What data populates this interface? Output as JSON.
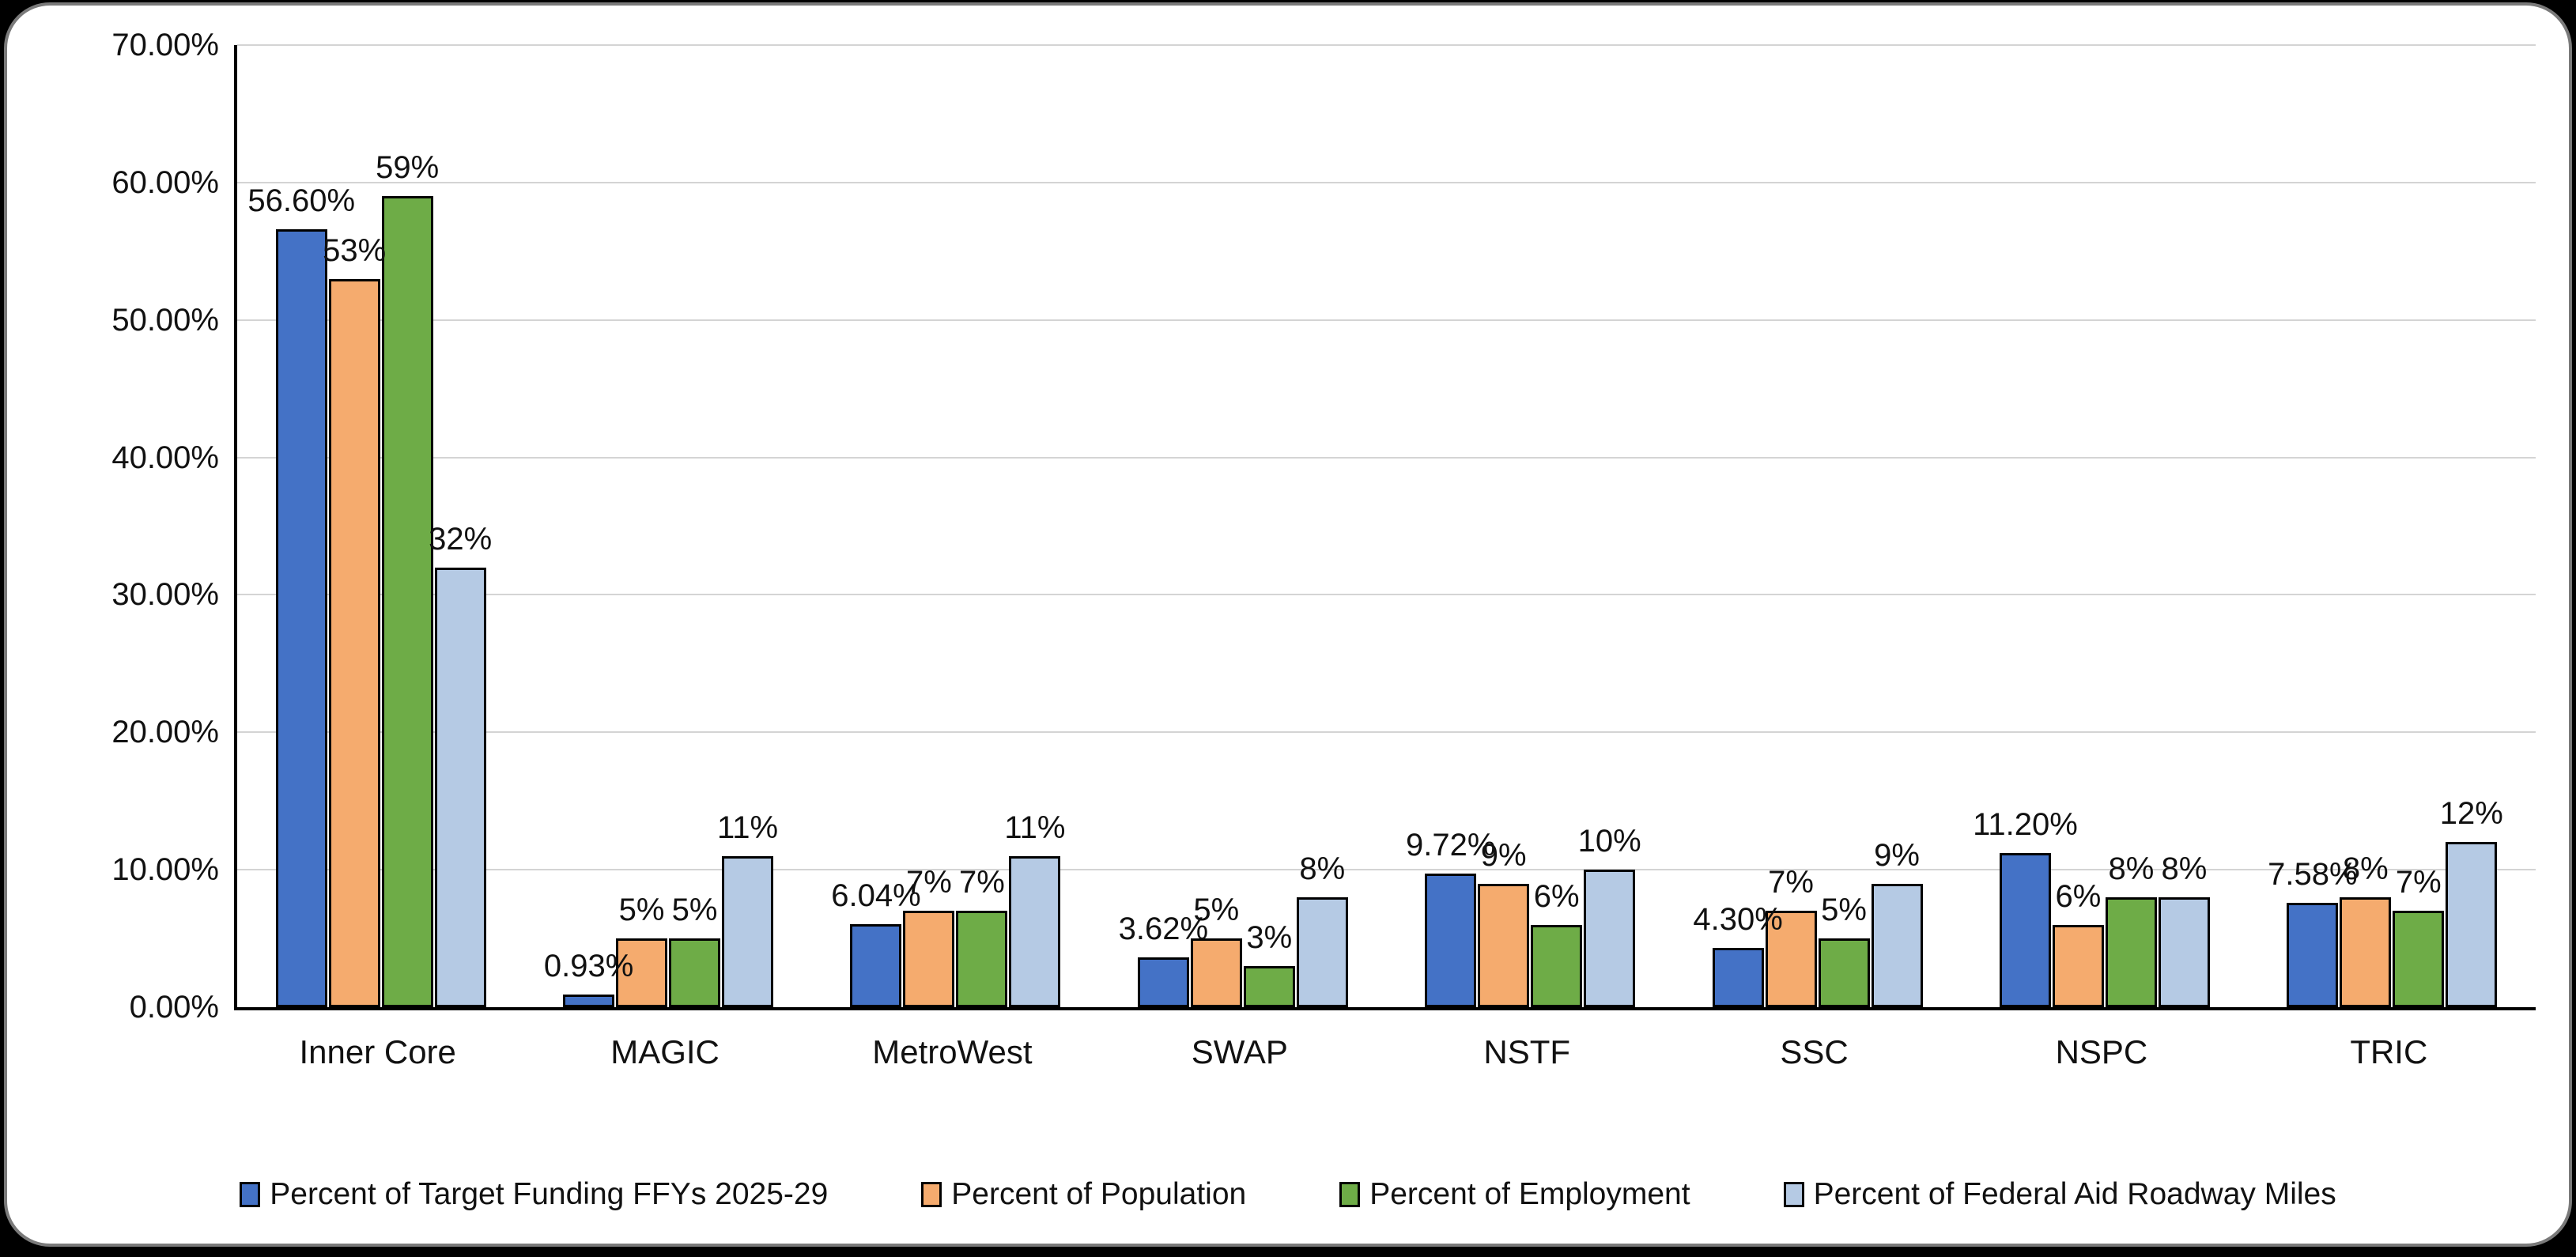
{
  "chart_data": {
    "type": "bar",
    "title": "",
    "categories": [
      "Inner Core",
      "MAGIC",
      "MetroWest",
      "SWAP",
      "NSTF",
      "SSC",
      "NSPC",
      "TRIC"
    ],
    "series": [
      {
        "name": "Percent of Target Funding FFYs 2025-29",
        "color": "#4472C6",
        "values": [
          56.6,
          0.93,
          6.04,
          3.62,
          9.72,
          4.3,
          11.2,
          7.58
        ],
        "labels": [
          "56.60%",
          "0.93%",
          "6.04%",
          "3.62%",
          "9.72%",
          "4.30%",
          "11.20%",
          "7.58%"
        ]
      },
      {
        "name": "Percent of Population",
        "color": "#F5AB6E",
        "values": [
          53,
          5,
          7,
          5,
          9,
          7,
          6,
          8
        ],
        "labels": [
          "53%",
          "5%",
          "7%",
          "5%",
          "9%",
          "7%",
          "6%",
          "8%"
        ]
      },
      {
        "name": "Percent of Employment",
        "color": "#6EAC47",
        "values": [
          59,
          5,
          7,
          3,
          6,
          5,
          8,
          7
        ],
        "labels": [
          "59%",
          "5%",
          "7%",
          "3%",
          "6%",
          "5%",
          "8%",
          "7%"
        ]
      },
      {
        "name": "Percent of Federal Aid Roadway Miles",
        "color": "#B5CAE4",
        "values": [
          32,
          11,
          11,
          8,
          10,
          9,
          8,
          12
        ],
        "labels": [
          "32%",
          "11%",
          "11%",
          "8%",
          "10%",
          "9%",
          "8%",
          "12%"
        ]
      }
    ],
    "y_axis": {
      "min": 0,
      "max": 70,
      "tick_step": 10,
      "tick_labels": [
        "0.00%",
        "10.00%",
        "20.00%",
        "30.00%",
        "40.00%",
        "50.00%",
        "60.00%",
        "70.00%"
      ]
    },
    "grid": true,
    "legend_position": "bottom",
    "data_labels": "outside-end"
  },
  "style": {
    "grid_color": "#D4D4D4",
    "axis_color": "#000000",
    "card_background": "#FFFFFF",
    "card_border_color": "#7A7A7A",
    "page_background": "#000000"
  }
}
